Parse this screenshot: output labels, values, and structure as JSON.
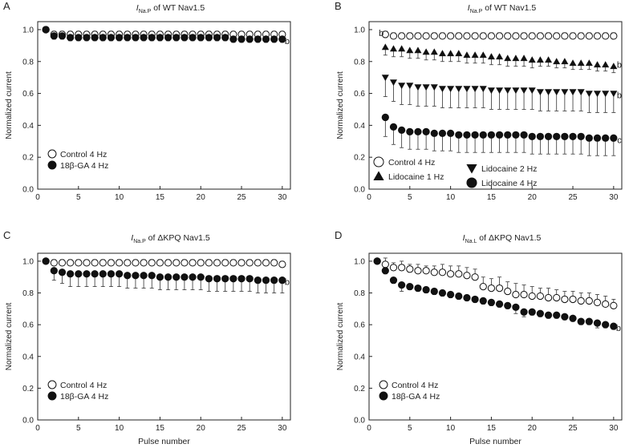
{
  "figure": {
    "xlabel_shared": "Pulse number"
  },
  "chart_data": [
    {
      "panel": "A",
      "type": "scatter",
      "title_main": "I",
      "title_sub": "Na.P",
      "title_rest": " of WT Nav1.5",
      "ylabel": "Normalized current",
      "xlabel": "",
      "xlim": [
        0,
        31
      ],
      "ylim": [
        0,
        1.05
      ],
      "xticks": [
        0,
        5,
        10,
        15,
        20,
        25,
        30
      ],
      "yticks": [
        0.0,
        0.2,
        0.4,
        0.6,
        0.8,
        1.0
      ],
      "x": [
        1,
        2,
        3,
        4,
        5,
        6,
        7,
        8,
        9,
        10,
        11,
        12,
        13,
        14,
        15,
        16,
        17,
        18,
        19,
        20,
        21,
        22,
        23,
        24,
        25,
        26,
        27,
        28,
        29,
        30
      ],
      "series": [
        {
          "name": "Control 4 Hz",
          "marker": "circle-open",
          "values": [
            1.0,
            0.97,
            0.97,
            0.97,
            0.97,
            0.97,
            0.97,
            0.97,
            0.97,
            0.97,
            0.97,
            0.97,
            0.97,
            0.97,
            0.97,
            0.97,
            0.97,
            0.97,
            0.97,
            0.97,
            0.97,
            0.97,
            0.97,
            0.97,
            0.97,
            0.97,
            0.97,
            0.97,
            0.97,
            0.97
          ],
          "errors": [
            0,
            0.02,
            0.02,
            0.02,
            0.02,
            0.02,
            0.02,
            0.02,
            0.02,
            0.02,
            0.02,
            0.02,
            0.02,
            0.02,
            0.02,
            0.02,
            0.02,
            0.02,
            0.02,
            0.02,
            0.02,
            0.02,
            0.02,
            0.02,
            0.02,
            0.02,
            0.02,
            0.02,
            0.02,
            0.02
          ]
        },
        {
          "name": "18β-GA 4 Hz",
          "marker": "circle-filled",
          "values": [
            1.0,
            0.96,
            0.96,
            0.95,
            0.95,
            0.95,
            0.95,
            0.95,
            0.95,
            0.95,
            0.95,
            0.95,
            0.95,
            0.95,
            0.95,
            0.95,
            0.95,
            0.95,
            0.95,
            0.95,
            0.95,
            0.95,
            0.95,
            0.94,
            0.94,
            0.94,
            0.94,
            0.94,
            0.94,
            0.94
          ],
          "errors": [
            0,
            0.02,
            0.02,
            0.02,
            0.02,
            0.02,
            0.02,
            0.02,
            0.02,
            0.02,
            0.02,
            0.02,
            0.02,
            0.02,
            0.02,
            0.02,
            0.02,
            0.02,
            0.02,
            0.02,
            0.02,
            0.02,
            0.02,
            0.02,
            0.02,
            0.02,
            0.02,
            0.02,
            0.02,
            0.02
          ]
        }
      ],
      "annotations": [
        {
          "text": "b",
          "x": 30.6,
          "y": 0.93
        }
      ],
      "legend_position": "bottom-left"
    },
    {
      "panel": "B",
      "type": "scatter",
      "title_main": "I",
      "title_sub": "Na.P",
      "title_rest": " of WT Nav1.5",
      "ylabel": "Normalized current",
      "xlabel": "",
      "xlim": [
        0,
        31
      ],
      "ylim": [
        0,
        1.05
      ],
      "xticks": [
        0,
        5,
        10,
        15,
        20,
        25,
        30
      ],
      "yticks": [
        0.0,
        0.2,
        0.4,
        0.6,
        0.8,
        1.0
      ],
      "x": [
        2,
        3,
        4,
        5,
        6,
        7,
        8,
        9,
        10,
        11,
        12,
        13,
        14,
        15,
        16,
        17,
        18,
        19,
        20,
        21,
        22,
        23,
        24,
        25,
        26,
        27,
        28,
        29,
        30
      ],
      "series": [
        {
          "name": "Control 4 Hz",
          "marker": "circle-open",
          "values": [
            0.97,
            0.96,
            0.96,
            0.96,
            0.96,
            0.96,
            0.96,
            0.96,
            0.96,
            0.96,
            0.96,
            0.96,
            0.96,
            0.96,
            0.96,
            0.96,
            0.96,
            0.96,
            0.96,
            0.96,
            0.96,
            0.96,
            0.96,
            0.96,
            0.96,
            0.96,
            0.96,
            0.96,
            0.96
          ],
          "errors": [
            0.02,
            0.02,
            0.02,
            0.02,
            0.02,
            0.02,
            0.02,
            0.02,
            0.02,
            0.02,
            0.02,
            0.02,
            0.02,
            0.02,
            0.02,
            0.02,
            0.02,
            0.02,
            0.02,
            0.02,
            0.02,
            0.02,
            0.02,
            0.02,
            0.02,
            0.02,
            0.02,
            0.02,
            0.02
          ]
        },
        {
          "name": "Lidocaine 1 Hz",
          "marker": "triangle-up",
          "values": [
            0.89,
            0.88,
            0.88,
            0.87,
            0.87,
            0.86,
            0.86,
            0.85,
            0.85,
            0.85,
            0.84,
            0.84,
            0.84,
            0.83,
            0.83,
            0.82,
            0.82,
            0.82,
            0.81,
            0.81,
            0.81,
            0.8,
            0.8,
            0.79,
            0.79,
            0.79,
            0.78,
            0.78,
            0.77
          ],
          "errors": [
            0.05,
            0.05,
            0.05,
            0.05,
            0.05,
            0.05,
            0.05,
            0.05,
            0.05,
            0.05,
            0.05,
            0.05,
            0.05,
            0.05,
            0.05,
            0.05,
            0.05,
            0.05,
            0.05,
            0.04,
            0.04,
            0.04,
            0.04,
            0.04,
            0.04,
            0.04,
            0.04,
            0.04,
            0.04
          ]
        },
        {
          "name": "Lidocaine 2 Hz",
          "marker": "triangle-down",
          "values": [
            0.7,
            0.67,
            0.65,
            0.65,
            0.64,
            0.64,
            0.64,
            0.63,
            0.63,
            0.63,
            0.63,
            0.63,
            0.63,
            0.62,
            0.62,
            0.62,
            0.62,
            0.62,
            0.62,
            0.61,
            0.61,
            0.61,
            0.61,
            0.61,
            0.61,
            0.6,
            0.6,
            0.6,
            0.6
          ],
          "errors": [
            0.12,
            0.12,
            0.12,
            0.12,
            0.12,
            0.12,
            0.12,
            0.12,
            0.12,
            0.12,
            0.12,
            0.12,
            0.12,
            0.12,
            0.12,
            0.12,
            0.12,
            0.12,
            0.12,
            0.12,
            0.12,
            0.12,
            0.12,
            0.12,
            0.12,
            0.12,
            0.12,
            0.12,
            0.12
          ]
        },
        {
          "name": "Lidocaine 4 Hz",
          "marker": "circle-filled",
          "values": [
            0.45,
            0.39,
            0.37,
            0.36,
            0.36,
            0.36,
            0.35,
            0.35,
            0.35,
            0.34,
            0.34,
            0.34,
            0.34,
            0.34,
            0.34,
            0.34,
            0.34,
            0.34,
            0.33,
            0.33,
            0.33,
            0.33,
            0.33,
            0.33,
            0.33,
            0.32,
            0.32,
            0.32,
            0.32
          ],
          "errors": [
            0.12,
            0.11,
            0.11,
            0.11,
            0.11,
            0.11,
            0.11,
            0.11,
            0.11,
            0.11,
            0.11,
            0.11,
            0.11,
            0.11,
            0.11,
            0.11,
            0.11,
            0.11,
            0.11,
            0.11,
            0.11,
            0.11,
            0.11,
            0.11,
            0.11,
            0.11,
            0.11,
            0.11,
            0.11
          ]
        }
      ],
      "annotations": [
        {
          "text": "b",
          "x": 1.5,
          "y": 0.98
        },
        {
          "text": "b",
          "x": 30.7,
          "y": 0.78
        },
        {
          "text": "b",
          "x": 30.7,
          "y": 0.59
        },
        {
          "text": "c",
          "x": 30.7,
          "y": 0.31
        }
      ],
      "legend_position": "bottom-left"
    },
    {
      "panel": "C",
      "type": "scatter",
      "title_main": "I",
      "title_sub": "Na.P",
      "title_rest": " of ΔKPQ Nav1.5",
      "ylabel": "Normalized current",
      "xlabel": "Pulse number",
      "xlim": [
        0,
        31
      ],
      "ylim": [
        0,
        1.05
      ],
      "xticks": [
        0,
        5,
        10,
        15,
        20,
        25,
        30
      ],
      "yticks": [
        0.0,
        0.2,
        0.4,
        0.6,
        0.8,
        1.0
      ],
      "x": [
        1,
        2,
        3,
        4,
        5,
        6,
        7,
        8,
        9,
        10,
        11,
        12,
        13,
        14,
        15,
        16,
        17,
        18,
        19,
        20,
        21,
        22,
        23,
        24,
        25,
        26,
        27,
        28,
        29,
        30
      ],
      "series": [
        {
          "name": "Control 4 Hz",
          "marker": "circle-open",
          "values": [
            1.0,
            0.99,
            0.99,
            0.99,
            0.99,
            0.99,
            0.99,
            0.99,
            0.99,
            0.99,
            0.99,
            0.99,
            0.99,
            0.99,
            0.99,
            0.99,
            0.99,
            0.99,
            0.99,
            0.99,
            0.99,
            0.99,
            0.99,
            0.99,
            0.99,
            0.99,
            0.99,
            0.99,
            0.99,
            0.98
          ],
          "errors": [
            0,
            0.02,
            0.02,
            0.02,
            0.02,
            0.02,
            0.02,
            0.02,
            0.02,
            0.02,
            0.02,
            0.02,
            0.02,
            0.02,
            0.02,
            0.02,
            0.02,
            0.02,
            0.02,
            0.02,
            0.02,
            0.02,
            0.02,
            0.02,
            0.02,
            0.02,
            0.02,
            0.02,
            0.02,
            0.02
          ]
        },
        {
          "name": "18β-GA 4 Hz",
          "marker": "circle-filled",
          "values": [
            1.0,
            0.94,
            0.93,
            0.92,
            0.92,
            0.92,
            0.92,
            0.92,
            0.92,
            0.92,
            0.91,
            0.91,
            0.91,
            0.91,
            0.9,
            0.9,
            0.9,
            0.9,
            0.9,
            0.9,
            0.89,
            0.89,
            0.89,
            0.89,
            0.89,
            0.89,
            0.88,
            0.88,
            0.88,
            0.88
          ],
          "errors": [
            0,
            0.06,
            0.07,
            0.08,
            0.08,
            0.08,
            0.08,
            0.08,
            0.08,
            0.08,
            0.08,
            0.08,
            0.08,
            0.08,
            0.08,
            0.08,
            0.08,
            0.08,
            0.08,
            0.08,
            0.08,
            0.08,
            0.08,
            0.08,
            0.08,
            0.08,
            0.08,
            0.08,
            0.08,
            0.08
          ]
        }
      ],
      "annotations": [
        {
          "text": "b",
          "x": 30.6,
          "y": 0.87
        }
      ],
      "legend_position": "bottom-left"
    },
    {
      "panel": "D",
      "type": "scatter",
      "title_main": "I",
      "title_sub": "Na.L",
      "title_rest": " of ΔKPQ Nav1.5",
      "ylabel": "Normalized current",
      "xlabel": "Pulse number",
      "xlim": [
        0,
        31
      ],
      "ylim": [
        0,
        1.05
      ],
      "xticks": [
        0,
        5,
        10,
        15,
        20,
        25,
        30
      ],
      "yticks": [
        0.0,
        0.2,
        0.4,
        0.6,
        0.8,
        1.0
      ],
      "x": [
        1,
        2,
        3,
        4,
        5,
        6,
        7,
        8,
        9,
        10,
        11,
        12,
        13,
        14,
        15,
        16,
        17,
        18,
        19,
        20,
        21,
        22,
        23,
        24,
        25,
        26,
        27,
        28,
        29,
        30
      ],
      "series": [
        {
          "name": "Control 4 Hz",
          "marker": "circle-open",
          "values": [
            1.0,
            0.98,
            0.96,
            0.96,
            0.95,
            0.94,
            0.94,
            0.93,
            0.93,
            0.92,
            0.92,
            0.91,
            0.9,
            0.84,
            0.83,
            0.83,
            0.81,
            0.79,
            0.79,
            0.78,
            0.78,
            0.77,
            0.77,
            0.76,
            0.76,
            0.75,
            0.75,
            0.74,
            0.73,
            0.72
          ],
          "errors": [
            0,
            0.04,
            0.03,
            0.04,
            0.03,
            0.04,
            0.03,
            0.04,
            0.05,
            0.05,
            0.05,
            0.05,
            0.05,
            0.06,
            0.06,
            0.07,
            0.06,
            0.07,
            0.06,
            0.06,
            0.05,
            0.06,
            0.05,
            0.05,
            0.05,
            0.05,
            0.05,
            0.05,
            0.05,
            0.04
          ]
        },
        {
          "name": "18β-GA 4 Hz",
          "marker": "circle-filled",
          "values": [
            1.0,
            0.94,
            0.88,
            0.85,
            0.84,
            0.83,
            0.82,
            0.81,
            0.8,
            0.79,
            0.78,
            0.77,
            0.76,
            0.75,
            0.74,
            0.73,
            0.72,
            0.71,
            0.68,
            0.68,
            0.67,
            0.66,
            0.66,
            0.65,
            0.64,
            0.62,
            0.62,
            0.61,
            0.6,
            0.59
          ],
          "errors": [
            0,
            0.02,
            0.02,
            0.04,
            0.02,
            0.02,
            0.02,
            0.02,
            0.02,
            0.02,
            0.02,
            0.02,
            0.02,
            0.02,
            0.02,
            0.02,
            0.02,
            0.04,
            0.03,
            0.02,
            0.02,
            0.02,
            0.02,
            0.02,
            0.02,
            0.02,
            0.02,
            0.03,
            0.02,
            0.02
          ]
        }
      ],
      "annotations": [
        {
          "text": "b",
          "x": 30.6,
          "y": 0.58
        }
      ],
      "legend_position": "bottom-left"
    }
  ]
}
